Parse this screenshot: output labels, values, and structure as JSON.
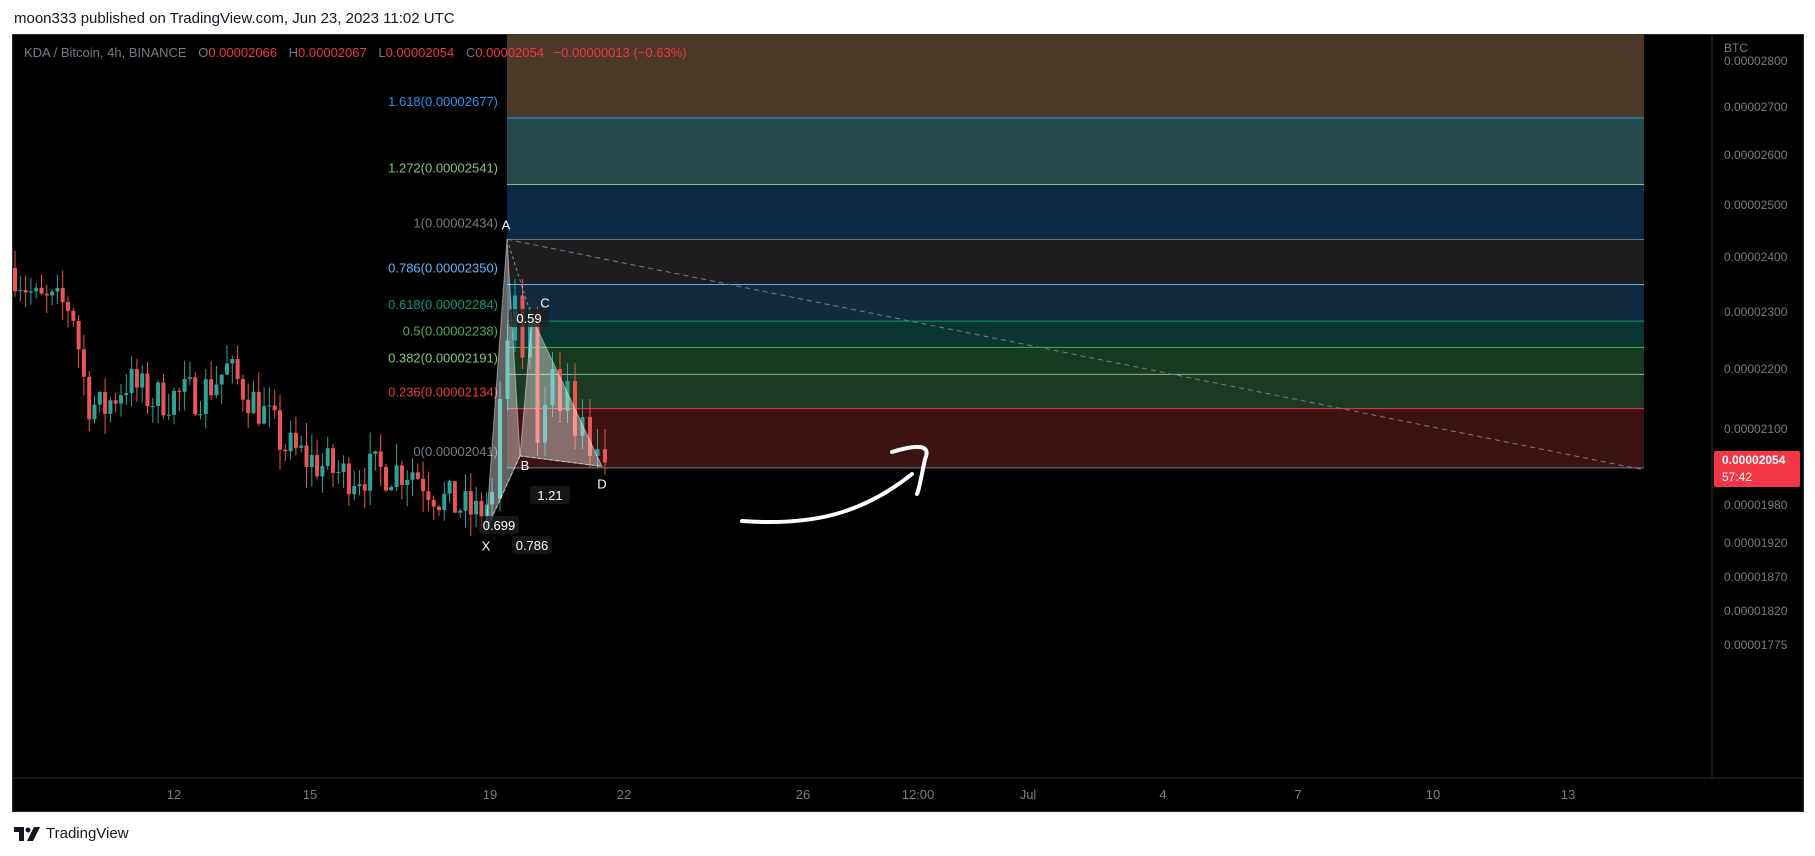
{
  "header": {
    "text": "moon333 published on TradingView.com, Jun 23, 2023 11:02 UTC"
  },
  "footer": {
    "brand": "TradingView",
    "logo_icon": "tradingview-logo-icon"
  },
  "legend": {
    "symbol": "KDA / Bitcoin, 4h, BINANCE",
    "o_label": "O",
    "o": "0.00002066",
    "h_label": "H",
    "h": "0.00002067",
    "l_label": "L",
    "l": "0.00002054",
    "c_label": "C",
    "c": "0.00002054",
    "change": "−0.00000013 (−0.63%)"
  },
  "chart_data": {
    "type": "candlestick",
    "currency": "BTC",
    "last_price": "0.00002054",
    "countdown": "57:42",
    "y_ticks": [
      "0.00002800",
      "0.00002700",
      "0.00002600",
      "0.00002500",
      "0.00002400",
      "0.00002300",
      "0.00002200",
      "0.00002100",
      "0.00002054",
      "0.00001980",
      "0.00001920",
      "0.00001870",
      "0.00001820",
      "0.00001775"
    ],
    "x_ticks": [
      "12",
      "15",
      "19",
      "22",
      "26",
      "12:00",
      "Jul",
      "4",
      "7",
      "10",
      "13"
    ],
    "fib_levels": [
      {
        "label": "1.618(0.00002677)",
        "ratio": 1.618,
        "price": 2.677e-05,
        "color": "#2196f3"
      },
      {
        "label": "1.272(0.00002541)",
        "ratio": 1.272,
        "price": 2.541e-05,
        "color": "#81c784"
      },
      {
        "label": "1(0.00002434)",
        "ratio": 1,
        "price": 2.434e-05,
        "color": "#787b86"
      },
      {
        "label": "0.786(0.00002350)",
        "ratio": 0.786,
        "price": 2.35e-05,
        "color": "#64b5f6"
      },
      {
        "label": "0.618(0.00002284)",
        "ratio": 0.618,
        "price": 2.284e-05,
        "color": "#089981"
      },
      {
        "label": "0.5(0.00002238)",
        "ratio": 0.5,
        "price": 2.238e-05,
        "color": "#4caf50"
      },
      {
        "label": "0.382(0.00002191)",
        "ratio": 0.382,
        "price": 2.191e-05,
        "color": "#81c784"
      },
      {
        "label": "0.236(0.00002134)",
        "ratio": 0.236,
        "price": 2.134e-05,
        "color": "#f23645"
      },
      {
        "label": "0(0.00002041)",
        "ratio": 0,
        "price": 2.041e-05,
        "color": "#787b86"
      }
    ],
    "harmonic_points": [
      {
        "name": "X",
        "x": "Jun 20",
        "price": 1.94e-05
      },
      {
        "name": "A",
        "x": "Jun 20",
        "price": 2.434e-05
      },
      {
        "name": "B",
        "x": "Jun 21",
        "price": 2.06e-05
      },
      {
        "name": "C",
        "x": "Jun 21",
        "price": 2.29e-05
      },
      {
        "name": "D",
        "x": "Jun 23",
        "price": 2.05e-05
      }
    ],
    "harmonic_ratios": [
      "0.59",
      "0.699",
      "0.786",
      "1.21"
    ]
  }
}
